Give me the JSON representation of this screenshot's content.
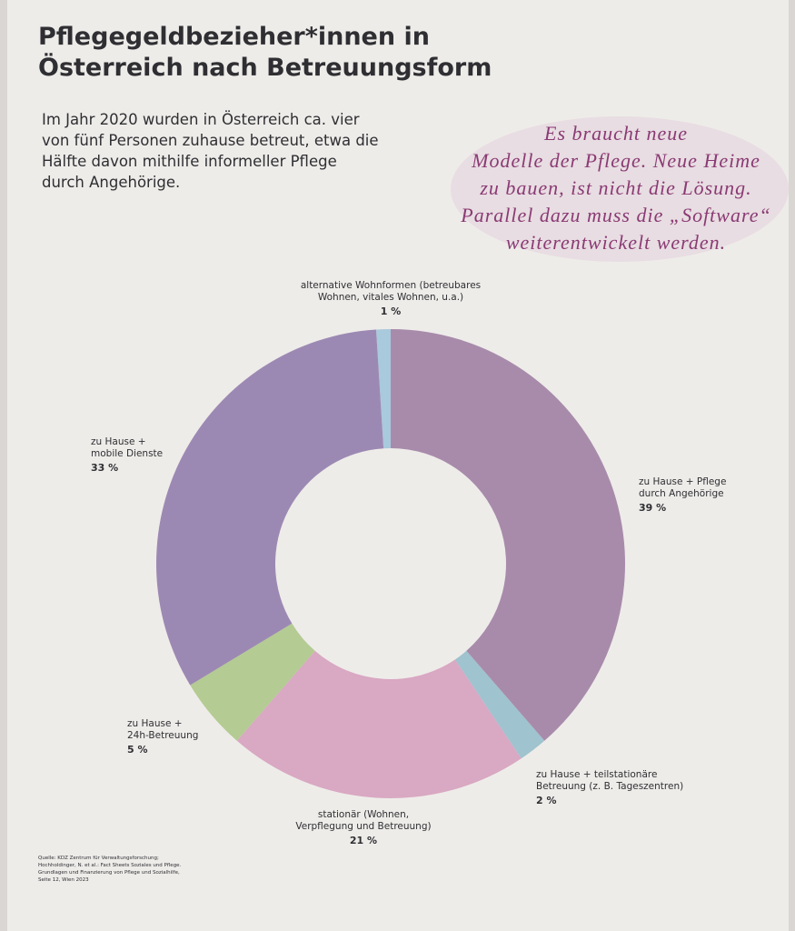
{
  "chart_data": {
    "type": "donut",
    "title": "Pflegegeldbezieher*innen in\nÖsterreich nach Betreuungsform",
    "subtitle": "Im Jahr 2020 wurden in Österreich ca. vier\nvon fünf Personen zuhause betreut, etwa die\nHälfte davon mithilfe informeller Pflege\ndurch Angehörige.",
    "annotation": "Es braucht neue\nModelle der Pflege. Neue Heime\nzu bauen, ist nicht die Lösung.\nParallel dazu muss die „Software“\nweiterentwickelt werden.",
    "source": "Quelle: KDZ Zentrum für Verwaltungsforschung;\nHochholdinger, N. et al.: Fact Sheets Soziales und Pflege.\nGrundlagen und Finanzierung von Pflege und Sozialhilfe,\nSeite 12, Wien 2023",
    "categories": [
      "alternative Wohnformen (betreubares\nWohnen, vitales Wohnen, u.a.)",
      "zu Hause + Pflege\ndurch Angehörige",
      "zu Hause + teilstationäre\nBetreuung (z. B. Tageszentren)",
      "stationär (Wohnen,\nVerpflegung und Betreuung)",
      "zu Hause +\n24h-Betreuung",
      "zu Hause +\nmobile Dienste"
    ],
    "values": [
      1,
      39,
      2,
      21,
      5,
      33
    ],
    "value_labels": [
      "1 %",
      "39 %",
      "2 %",
      "21 %",
      "5 %",
      "33 %"
    ],
    "colors": [
      "#a9c9dc",
      "#a88bab",
      "#9fc3cf",
      "#d9a8c2",
      "#b4cb93",
      "#9c89b3"
    ]
  }
}
